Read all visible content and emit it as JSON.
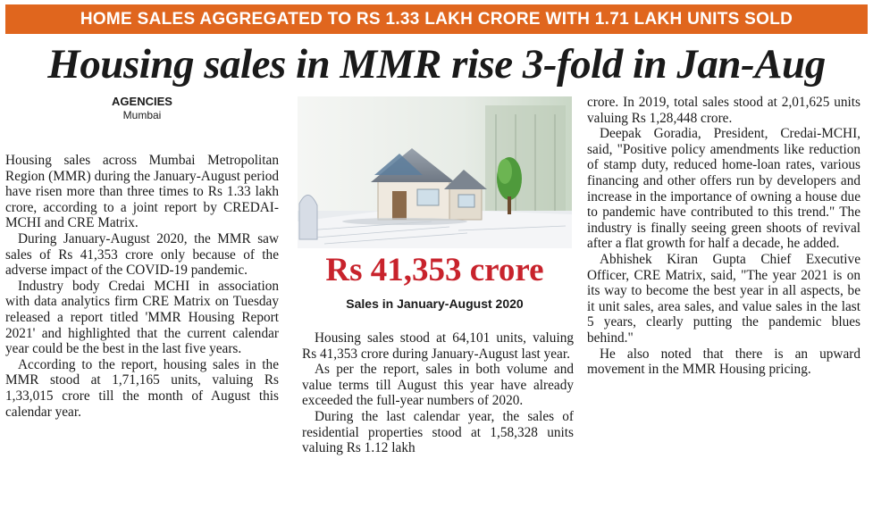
{
  "banner": "HOME SALES AGGREGATED TO RS 1.33 LAKH CRORE WITH 1.71 LAKH UNITS SOLD",
  "headline": "Housing sales in MMR rise 3-fold in Jan-Aug",
  "byline": {
    "agency": "AGENCIES",
    "city": "Mumbai"
  },
  "figure": {
    "image": "house-model-on-documents-photo",
    "amount": "Rs 41,353 crore",
    "caption": "Sales in January-August 2020"
  },
  "column1": [
    "Housing sales across Mumbai Metropolitan Region (MMR) during the January-August period have risen more than three times to Rs 1.33 lakh crore, according to a joint report by CREDAI-MCHI and CRE Matrix.",
    "During January-August 2020, the MMR saw sales of Rs 41,353 crore only because of the adverse impact of the COVID-19 pandemic.",
    "Industry body Credai MCHI in association with data analytics firm CRE Matrix on Tuesday released a report titled 'MMR Housing Report 2021' and highlighted that the current calendar year could be the best in the last five years.",
    "According to the report, housing sales in the MMR stood at 1,71,165 units, valuing Rs 1,33,015 crore till the month of August this calendar year."
  ],
  "column2": [
    "Housing sales stood at 64,101 units, valuing Rs 41,353 crore during January-August last year.",
    "As per the report, sales in both volume and value terms till August this year have already exceeded the full-year numbers of 2020.",
    "During the last calendar year, the sales of residential properties stood at 1,58,328 units valuing Rs 1.12 lakh"
  ],
  "column3": [
    "crore. In 2019, total sales stood at 2,01,625 units valuing Rs 1,28,448 crore.",
    "Deepak Goradia, President, Credai-MCHI, said, \"Positive policy amendments like reduction of stamp duty, reduced home-loan rates, various financing and other offers run by developers and increase in the importance of owning a house due to pandemic have contributed to this trend.\" The industry is finally seeing green shoots of revival after a flat growth for half a decade, he added.",
    "Abhishek Kiran Gupta Chief Executive Officer, CRE Matrix, said, \"The year 2021 is on its way to become the best year in all aspects, be it unit sales, area sales, and value sales in the last 5 years, clearly putting the pandemic blues behind.\"",
    "He also noted that there is an upward movement in the MMR Housing pricing."
  ]
}
